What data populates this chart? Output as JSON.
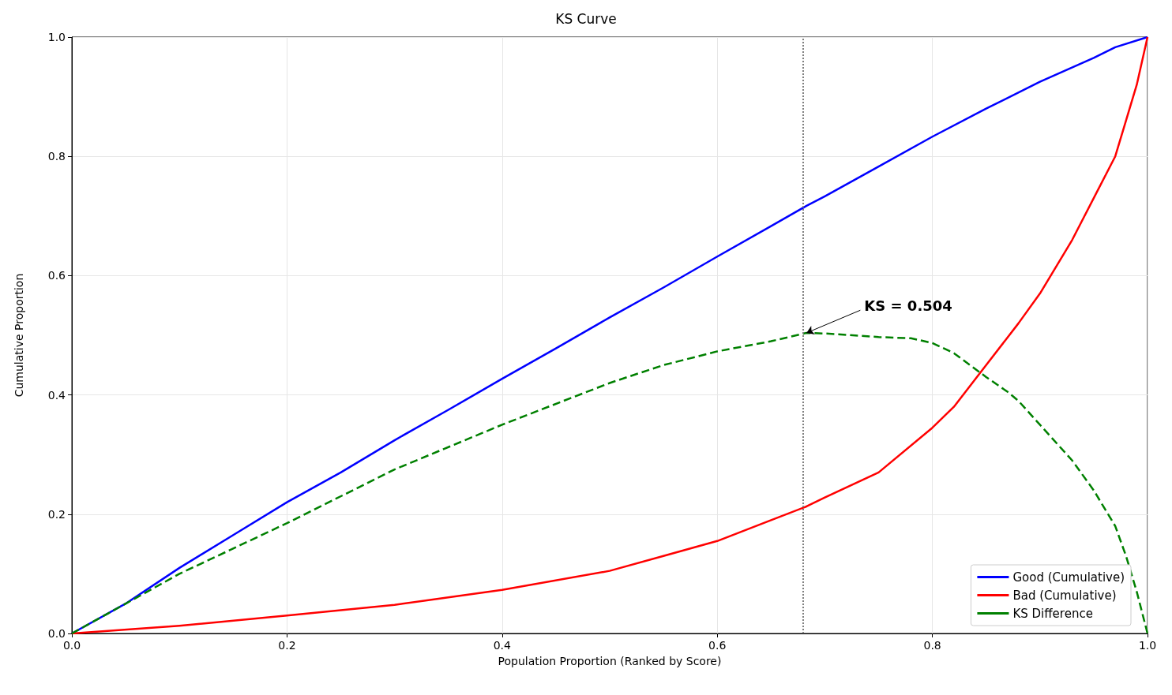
{
  "chart_data": {
    "type": "line",
    "title": "KS Curve",
    "xlabel": "Population Proportion (Ranked by Score)",
    "ylabel": "Cumulative Proportion",
    "xlim": [
      0,
      1
    ],
    "ylim": [
      0,
      1
    ],
    "xticks": [
      {
        "value": 0,
        "label": "0.0"
      },
      0.2,
      0.4,
      0.6,
      0.8,
      {
        "value": 1,
        "label": "1.0"
      }
    ],
    "yticks": [
      {
        "value": 0,
        "label": "0.0"
      },
      0.2,
      0.4,
      0.6,
      0.8,
      {
        "value": 1,
        "label": "1.0"
      }
    ],
    "grid": true,
    "legend": "bottom right",
    "marker": "none",
    "series": [
      {
        "name": "Good (Cumulative)",
        "color": "#0000ff",
        "line_style": "solid",
        "x": [
          0,
          0.05,
          0.1,
          0.15,
          0.2,
          0.25,
          0.3,
          0.35,
          0.4,
          0.45,
          0.5,
          0.55,
          0.6,
          0.65,
          0.683,
          0.7,
          0.75,
          0.8,
          0.85,
          0.9,
          0.95,
          0.97,
          1
        ],
        "values": [
          0,
          0.05,
          0.11,
          0.165,
          0.22,
          0.27,
          0.324,
          0.375,
          0.427,
          0.478,
          0.53,
          0.58,
          0.632,
          0.683,
          0.717,
          0.733,
          0.783,
          0.833,
          0.88,
          0.925,
          0.965,
          0.983,
          1
        ]
      },
      {
        "name": "Bad (Cumulative)",
        "color": "#ff0000",
        "line_style": "solid",
        "x": [
          0,
          0.1,
          0.2,
          0.3,
          0.4,
          0.5,
          0.55,
          0.6,
          0.65,
          0.683,
          0.7,
          0.75,
          0.8,
          0.82,
          0.85,
          0.88,
          0.9,
          0.93,
          0.95,
          0.97,
          0.98,
          0.99,
          1
        ],
        "values": [
          0,
          0.013,
          0.03,
          0.048,
          0.073,
          0.105,
          0.13,
          0.155,
          0.19,
          0.213,
          0.228,
          0.27,
          0.345,
          0.38,
          0.45,
          0.52,
          0.57,
          0.66,
          0.73,
          0.8,
          0.86,
          0.92,
          1
        ]
      },
      {
        "name": "KS Difference",
        "color": "#008000",
        "line_style": "dashed",
        "x": [
          0,
          0.1,
          0.2,
          0.3,
          0.4,
          0.5,
          0.55,
          0.6,
          0.65,
          0.683,
          0.7,
          0.75,
          0.78,
          0.8,
          0.82,
          0.85,
          0.87,
          0.88,
          0.9,
          0.93,
          0.95,
          0.97,
          0.98,
          0.99,
          1
        ],
        "values": [
          0,
          0.1,
          0.185,
          0.275,
          0.35,
          0.42,
          0.45,
          0.473,
          0.49,
          0.504,
          0.503,
          0.497,
          0.495,
          0.487,
          0.47,
          0.43,
          0.405,
          0.39,
          0.35,
          0.29,
          0.24,
          0.18,
          0.13,
          0.07,
          0
        ]
      }
    ],
    "ref_lines": [
      {
        "axis": "x",
        "value": 0.683,
        "color": "#808080",
        "line_style": "dotted"
      }
    ],
    "annotations": [
      {
        "text": "KS = 0.504",
        "x": 0.683,
        "y": 0.504
      }
    ]
  }
}
